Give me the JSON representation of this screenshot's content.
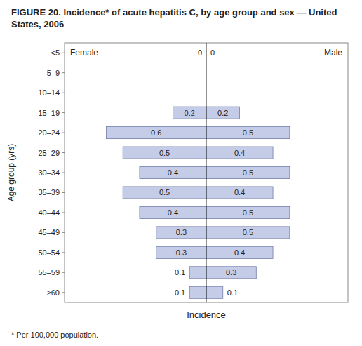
{
  "chart_data": {
    "type": "bar",
    "orientation": "horizontal",
    "title": "FIGURE 20. Incidence* of acute hepatitis C, by age group and sex — United States, 2006",
    "footnote": "* Per 100,000 population.",
    "xlabel": "Incidence",
    "ylabel": "Age group (yrs)",
    "categories": [
      "<5",
      "5–9",
      "10–14",
      "15–19",
      "20–24",
      "25–29",
      "30–34",
      "35–39",
      "40–44",
      "45–49",
      "50–54",
      "55–59",
      "≥60"
    ],
    "series": [
      {
        "name": "Female",
        "color": "#c5cce8",
        "values": [
          0.0,
          0.0,
          0.0,
          0.2,
          0.6,
          0.5,
          0.4,
          0.5,
          0.4,
          0.3,
          0.3,
          0.1,
          0.1
        ],
        "value_labels": [
          "0",
          null,
          null,
          "0.2",
          "0.6",
          "0.5",
          "0.4",
          "0.5",
          "0.4",
          "0.3",
          "0.3",
          "0.1",
          "0.1"
        ]
      },
      {
        "name": "Male",
        "color": "#c5cce8",
        "values": [
          0.0,
          0.0,
          0.0,
          0.2,
          0.5,
          0.4,
          0.5,
          0.4,
          0.5,
          0.5,
          0.4,
          0.3,
          0.1
        ],
        "value_labels": [
          "0",
          null,
          null,
          "0.2",
          "0.5",
          "0.4",
          "0.5",
          "0.4",
          "0.5",
          "0.5",
          "0.4",
          "0.3",
          "0.1"
        ]
      }
    ],
    "xlim": [
      -0.85,
      0.85
    ],
    "xticks": [],
    "tick_labels": "y",
    "data_labels": true,
    "grid": false
  }
}
